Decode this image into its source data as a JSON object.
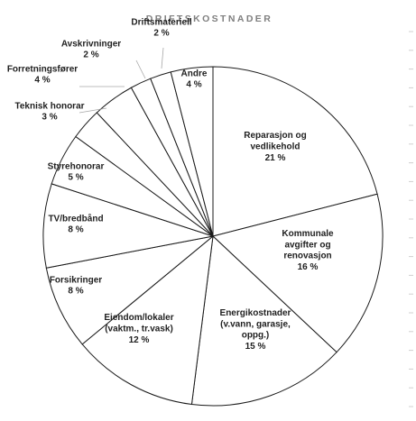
{
  "chart_data": {
    "type": "pie",
    "title": "DRIFTSKOSTNADER",
    "unit": "%",
    "slices": [
      {
        "label": [
          "Reparasjon og",
          "vedlikehold"
        ],
        "value": 21
      },
      {
        "label": [
          "Kommunale",
          "avgifter og",
          "renovasjon"
        ],
        "value": 16
      },
      {
        "label": [
          "Energikostnader",
          "(v.vann, garasje,",
          "oppg.)"
        ],
        "value": 15
      },
      {
        "label": [
          "Eiendom/lokaler",
          "(vaktm., tr.vask)"
        ],
        "value": 12
      },
      {
        "label": [
          "Forsikringer"
        ],
        "value": 8
      },
      {
        "label": [
          "TV/bredbånd"
        ],
        "value": 8
      },
      {
        "label": [
          "Styrehonorar"
        ],
        "value": 5
      },
      {
        "label": [
          "Teknisk honorar"
        ],
        "value": 3
      },
      {
        "label": [
          "Forretningsfører"
        ],
        "value": 4
      },
      {
        "label": [
          "Avskrivninger"
        ],
        "value": 2
      },
      {
        "label": [
          "Driftsmateriell"
        ],
        "value": 2
      },
      {
        "label": [
          "Andre"
        ],
        "value": 4
      }
    ]
  }
}
